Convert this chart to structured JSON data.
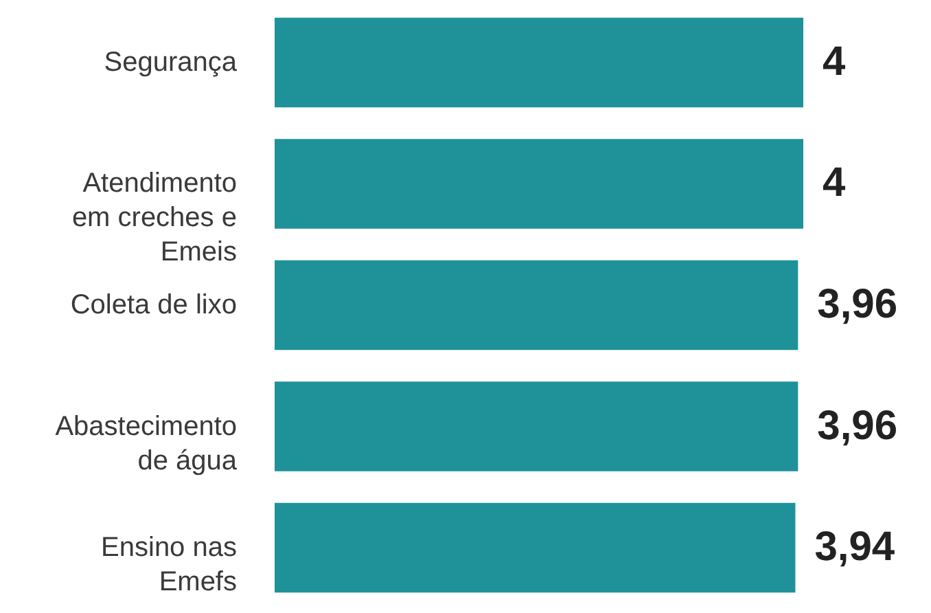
{
  "chart_data": {
    "type": "bar",
    "orientation": "horizontal",
    "categories": [
      "Segurança",
      "Atendimento\nem creches e\nEmeis",
      "Coleta de lixo",
      "Abastecimento\nde água",
      "Ensino nas\nEmefs"
    ],
    "values": [
      4,
      4,
      3.96,
      3.96,
      3.94
    ],
    "value_labels": [
      "4",
      "4",
      "3,96",
      "3,96",
      "3,94"
    ],
    "color": "#1f9199"
  }
}
